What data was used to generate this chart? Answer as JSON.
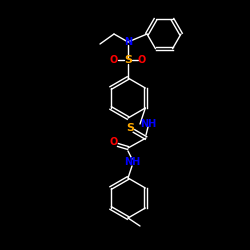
{
  "background_color": "#000000",
  "bond_color": "#ffffff",
  "atom_colors": {
    "N": "#0000ff",
    "S": "#ffaa00",
    "O": "#ff0000"
  },
  "lw": 1.0,
  "fs": 7.0
}
